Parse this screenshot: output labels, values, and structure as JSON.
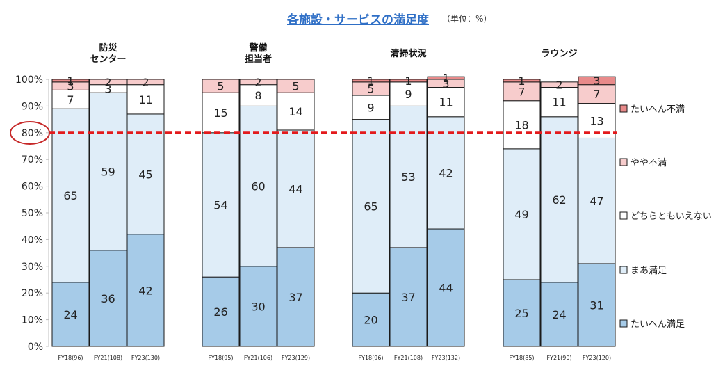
{
  "chart_data": {
    "type": "bar",
    "stacked": true,
    "percent": true,
    "title": "各施設・サービスの満足度",
    "unit_note": "（単位：%）",
    "ylim": [
      0,
      100
    ],
    "yticks": [
      "0%",
      "10%",
      "20%",
      "30%",
      "40%",
      "50%",
      "60%",
      "70%",
      "80%",
      "90%",
      "100%"
    ],
    "reference_line": {
      "value": 80,
      "label": "80%",
      "style": "dashed",
      "color": "#e31a1c"
    },
    "legend_position": "right",
    "series": [
      {
        "name": "たいへん満足",
        "color": "#a6cbe8"
      },
      {
        "name": "まあ満足",
        "color": "#dfedf8"
      },
      {
        "name": "どちらともいえない",
        "color": "#ffffff"
      },
      {
        "name": "やや不満",
        "color": "#f7cccc"
      },
      {
        "name": "たいへん不満",
        "color": "#e88a8a"
      }
    ],
    "groups": [
      {
        "label": [
          "防災",
          "センター"
        ],
        "bars": [
          {
            "label": "FY18(96)",
            "values": [
              24,
              65,
              7,
              3,
              1
            ]
          },
          {
            "label": "FY21(108)",
            "values": [
              36,
              59,
              3,
              2,
              0
            ]
          },
          {
            "label": "FY23(130)",
            "values": [
              42,
              45,
              11,
              2,
              0
            ]
          }
        ]
      },
      {
        "label": [
          "警備",
          "担当者"
        ],
        "bars": [
          {
            "label": "FY18(95)",
            "values": [
              26,
              54,
              15,
              5,
              0
            ]
          },
          {
            "label": "FY21(106)",
            "values": [
              30,
              60,
              8,
              2,
              0
            ]
          },
          {
            "label": "FY23(129)",
            "values": [
              37,
              44,
              14,
              5,
              0
            ]
          }
        ]
      },
      {
        "label": [
          "清掃状況"
        ],
        "bars": [
          {
            "label": "FY18(96)",
            "values": [
              20,
              65,
              9,
              5,
              1
            ]
          },
          {
            "label": "FY21(108)",
            "values": [
              37,
              53,
              9,
              0,
              1
            ]
          },
          {
            "label": "FY23(132)",
            "values": [
              44,
              42,
              11,
              3,
              1
            ]
          }
        ]
      },
      {
        "label": [
          "ラウンジ"
        ],
        "bars": [
          {
            "label": "FY18(85)",
            "values": [
              25,
              49,
              18,
              7,
              1
            ]
          },
          {
            "label": "FY21(90)",
            "values": [
              24,
              62,
              11,
              2,
              0
            ]
          },
          {
            "label": "FY23(120)",
            "values": [
              31,
              47,
              13,
              7,
              3
            ]
          }
        ]
      }
    ]
  }
}
